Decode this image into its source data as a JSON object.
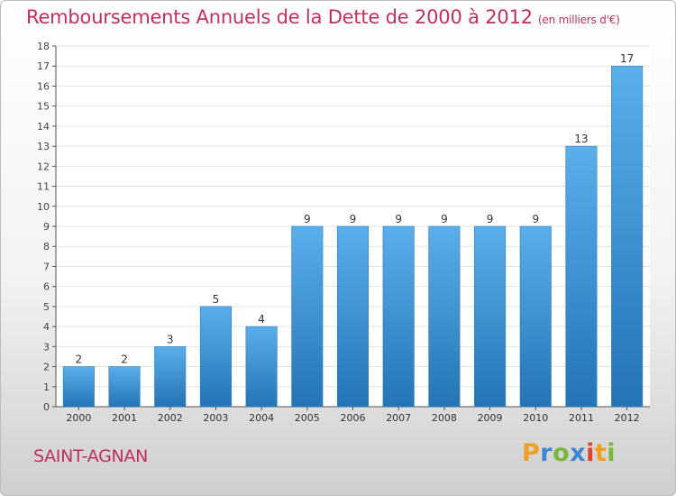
{
  "header": {
    "title": "Remboursements Annuels de la Dette de 2000 à 2012",
    "unit": "(en milliers d'€)"
  },
  "footer": {
    "town": "SAINT-AGNAN",
    "brand": "Proxiti"
  },
  "colors": {
    "title": "#c0305c",
    "bar_light": "#5aaeea",
    "bar_dark": "#2474b6",
    "axis": "#555555"
  },
  "chart_data": {
    "type": "bar",
    "title": "Remboursements Annuels de la Dette de 2000 à 2012",
    "xlabel": "",
    "ylabel": "",
    "categories": [
      "2000",
      "2001",
      "2002",
      "2003",
      "2004",
      "2005",
      "2006",
      "2007",
      "2008",
      "2009",
      "2010",
      "2011",
      "2012"
    ],
    "values": [
      2,
      2,
      3,
      5,
      4,
      9,
      9,
      9,
      9,
      9,
      9,
      13,
      17
    ],
    "ylim": [
      0,
      18
    ],
    "yticks": [
      0,
      1,
      2,
      3,
      4,
      5,
      6,
      7,
      8,
      9,
      10,
      11,
      12,
      13,
      14,
      15,
      16,
      17,
      18
    ],
    "grid": true,
    "data_labels": true
  }
}
